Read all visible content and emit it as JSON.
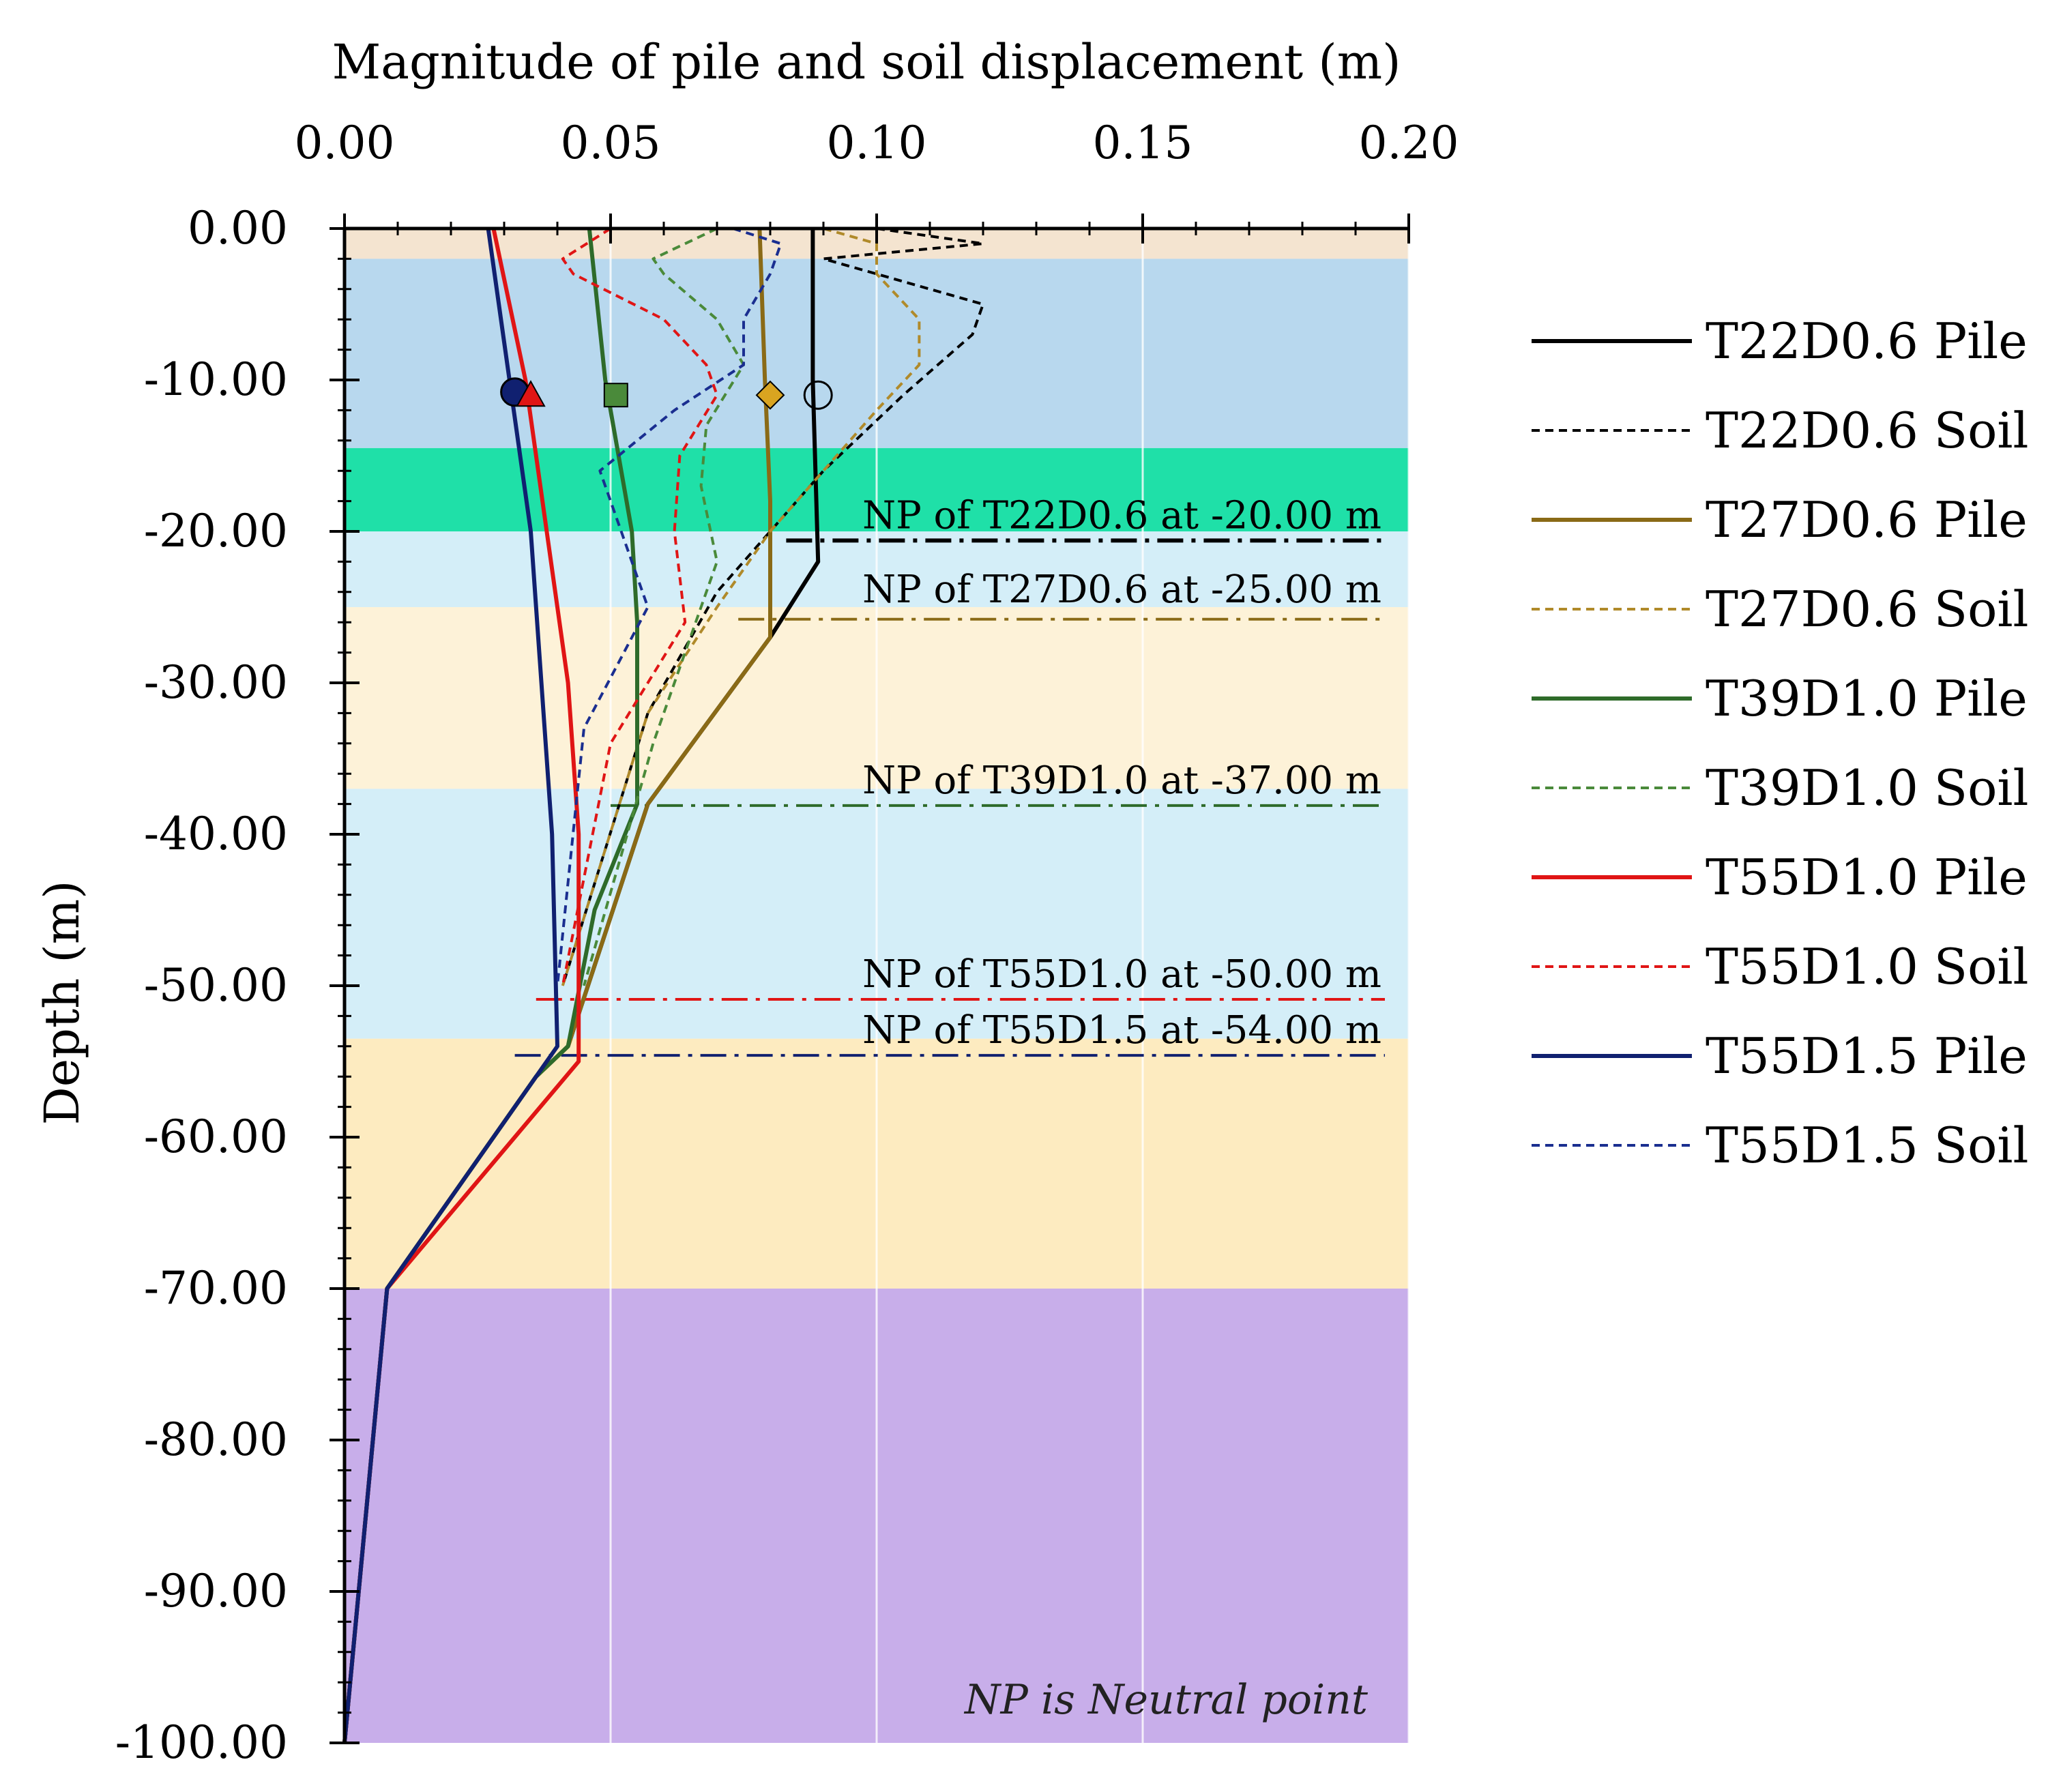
{
  "chart_data": {
    "type": "line",
    "title": "",
    "xlabel": "Magnitude of pile and soil displacement (m)",
    "ylabel": "Depth (m)",
    "xlim": [
      0,
      0.2
    ],
    "ylim": [
      -100,
      0
    ],
    "x_ticks": [
      0,
      0.05,
      0.1,
      0.15,
      0.2
    ],
    "x_tick_labels": [
      "0.00",
      "0.05",
      "0.10",
      "0.15",
      "0.20"
    ],
    "y_ticks": [
      0,
      -10,
      -20,
      -30,
      -40,
      -50,
      -60,
      -70,
      -80,
      -90,
      -100
    ],
    "y_tick_labels": [
      "0.00",
      "-10.00",
      "-20.00",
      "-30.00",
      "-40.00",
      "-50.00",
      "-60.00",
      "-70.00",
      "-80.00",
      "-90.00",
      "-100.00"
    ],
    "grid": true,
    "legend_position": "right",
    "layers": [
      {
        "top": 0,
        "bottom": -2,
        "color": "#f4e4d0"
      },
      {
        "top": -2,
        "bottom": -14.5,
        "color": "#b8d8ee"
      },
      {
        "top": -14.5,
        "bottom": -20,
        "color": "#1fe0a8"
      },
      {
        "top": -20,
        "bottom": -25,
        "color": "#d4eef8"
      },
      {
        "top": -25,
        "bottom": -37,
        "color": "#fdf2d8"
      },
      {
        "top": -37,
        "bottom": -53.5,
        "color": "#d4eef8"
      },
      {
        "top": -53.5,
        "bottom": -70,
        "color": "#fdebc0"
      },
      {
        "top": -70,
        "bottom": -100,
        "color": "#c8aeea"
      }
    ],
    "series": [
      {
        "name": "T22D0.6 Pile",
        "style": "solid",
        "color": "#000000",
        "x": [
          0.088,
          0.088,
          0.089,
          0.08,
          0.057,
          0.042,
          0.036,
          0.008,
          0.0
        ],
        "y": [
          0,
          -10,
          -22,
          -27,
          -38,
          -54,
          -56,
          -70,
          -100
        ]
      },
      {
        "name": "T22D0.6 Soil",
        "style": "dashed",
        "color": "#000000",
        "x": [
          0.1,
          0.12,
          0.09,
          0.1,
          0.12,
          0.118,
          0.105,
          0.09,
          0.08,
          0.07,
          0.057,
          0.041
        ],
        "y": [
          0,
          -1,
          -2,
          -3,
          -5,
          -7,
          -11,
          -16,
          -20,
          -24,
          -32,
          -50
        ]
      },
      {
        "name": "T27D0.6 Pile",
        "style": "solid",
        "color": "#8a6a16",
        "x": [
          0.078,
          0.079,
          0.08,
          0.08,
          0.057,
          0.042,
          0.036,
          0.008,
          0.0
        ],
        "y": [
          0,
          -10,
          -18,
          -27,
          -38,
          -54,
          -56,
          -70,
          -100
        ]
      },
      {
        "name": "T27D0.6 Soil",
        "style": "dashed",
        "color": "#b08a2a",
        "x": [
          0.09,
          0.1,
          0.1,
          0.108,
          0.108,
          0.1,
          0.09,
          0.08,
          0.07,
          0.057,
          0.041
        ],
        "y": [
          0,
          -1,
          -3,
          -6,
          -9,
          -12,
          -16,
          -20,
          -25,
          -32,
          -50
        ]
      },
      {
        "name": "T39D1.0 Pile",
        "style": "solid",
        "color": "#2e6b2a",
        "x": [
          0.046,
          0.049,
          0.054,
          0.055,
          0.055,
          0.047,
          0.042,
          0.036,
          0.008,
          0.0
        ],
        "y": [
          0,
          -10,
          -20,
          -26,
          -38,
          -45,
          -54,
          -56,
          -70,
          -100
        ]
      },
      {
        "name": "T39D1.0 Soil",
        "style": "dashed",
        "color": "#4a8a3a",
        "x": [
          0.07,
          0.058,
          0.06,
          0.07,
          0.075,
          0.068,
          0.067,
          0.07,
          0.066,
          0.058,
          0.045
        ],
        "y": [
          0,
          -2,
          -3,
          -6,
          -9,
          -13,
          -17,
          -22,
          -26,
          -34,
          -50
        ]
      },
      {
        "name": "T55D1.0 Pile",
        "style": "solid",
        "color": "#e01515",
        "x": [
          0.028,
          0.034,
          0.038,
          0.042,
          0.044,
          0.044,
          0.008,
          0.0
        ],
        "y": [
          0,
          -10,
          -20,
          -30,
          -40,
          -55,
          -70,
          -100
        ]
      },
      {
        "name": "T55D1.0 Soil",
        "style": "dashed",
        "color": "#e01515",
        "x": [
          0.05,
          0.041,
          0.043,
          0.06,
          0.068,
          0.07,
          0.063,
          0.062,
          0.064,
          0.05,
          0.041
        ],
        "y": [
          0,
          -2,
          -3,
          -6,
          -9,
          -11,
          -15,
          -20,
          -26,
          -34,
          -50
        ]
      },
      {
        "name": "T55D1.5 Pile",
        "style": "solid",
        "color": "#102070",
        "x": [
          0.027,
          0.031,
          0.035,
          0.037,
          0.039,
          0.04,
          0.008,
          0.0
        ],
        "y": [
          0,
          -10,
          -20,
          -30,
          -40,
          -54,
          -70,
          -100
        ]
      },
      {
        "name": "T55D1.5 Soil",
        "style": "dashed",
        "color": "#1a2e90",
        "x": [
          0.073,
          0.082,
          0.08,
          0.075,
          0.075,
          0.062,
          0.048,
          0.052,
          0.057,
          0.045,
          0.04
        ],
        "y": [
          0,
          -1,
          -3,
          -6,
          -9,
          -12,
          -16,
          -20,
          -25,
          -33,
          -50
        ]
      }
    ],
    "markers": [
      {
        "series": "T55D1.5",
        "shape": "circle",
        "fill": "#102070",
        "x": 0.032,
        "y": -10.8
      },
      {
        "series": "T55D1.0",
        "shape": "triangle",
        "fill": "#e01515",
        "x": 0.035,
        "y": -11
      },
      {
        "series": "T39D1.0",
        "shape": "square",
        "fill": "#4a8a3a",
        "x": 0.051,
        "y": -11
      },
      {
        "series": "T27D0.6",
        "shape": "diamond",
        "fill": "#d9a420",
        "x": 0.08,
        "y": -11
      },
      {
        "series": "T22D0.6",
        "shape": "circle-open",
        "fill": "none",
        "x": 0.089,
        "y": -11
      }
    ],
    "neutral_points": [
      {
        "label": "NP of T22D0.6 at -20.00 m",
        "depth": -20.6,
        "x_start": 0.083,
        "color": "#000000"
      },
      {
        "label": "NP of T27D0.6 at -25.00 m",
        "depth": -25.8,
        "x_start": 0.074,
        "color": "#8a6a16"
      },
      {
        "label": "NP of T39D1.0 at -37.00 m",
        "depth": -38.1,
        "x_start": 0.05,
        "color": "#2e6b2a"
      },
      {
        "label": "NP of T55D1.0 at -50.00 m",
        "depth": -50.9,
        "x_start": 0.036,
        "color": "#e01515"
      },
      {
        "label": "NP of T55D1.5 at -54.00 m",
        "depth": -54.6,
        "x_start": 0.032,
        "color": "#102070"
      }
    ],
    "annotations": [
      "NP is Neutral point"
    ]
  }
}
